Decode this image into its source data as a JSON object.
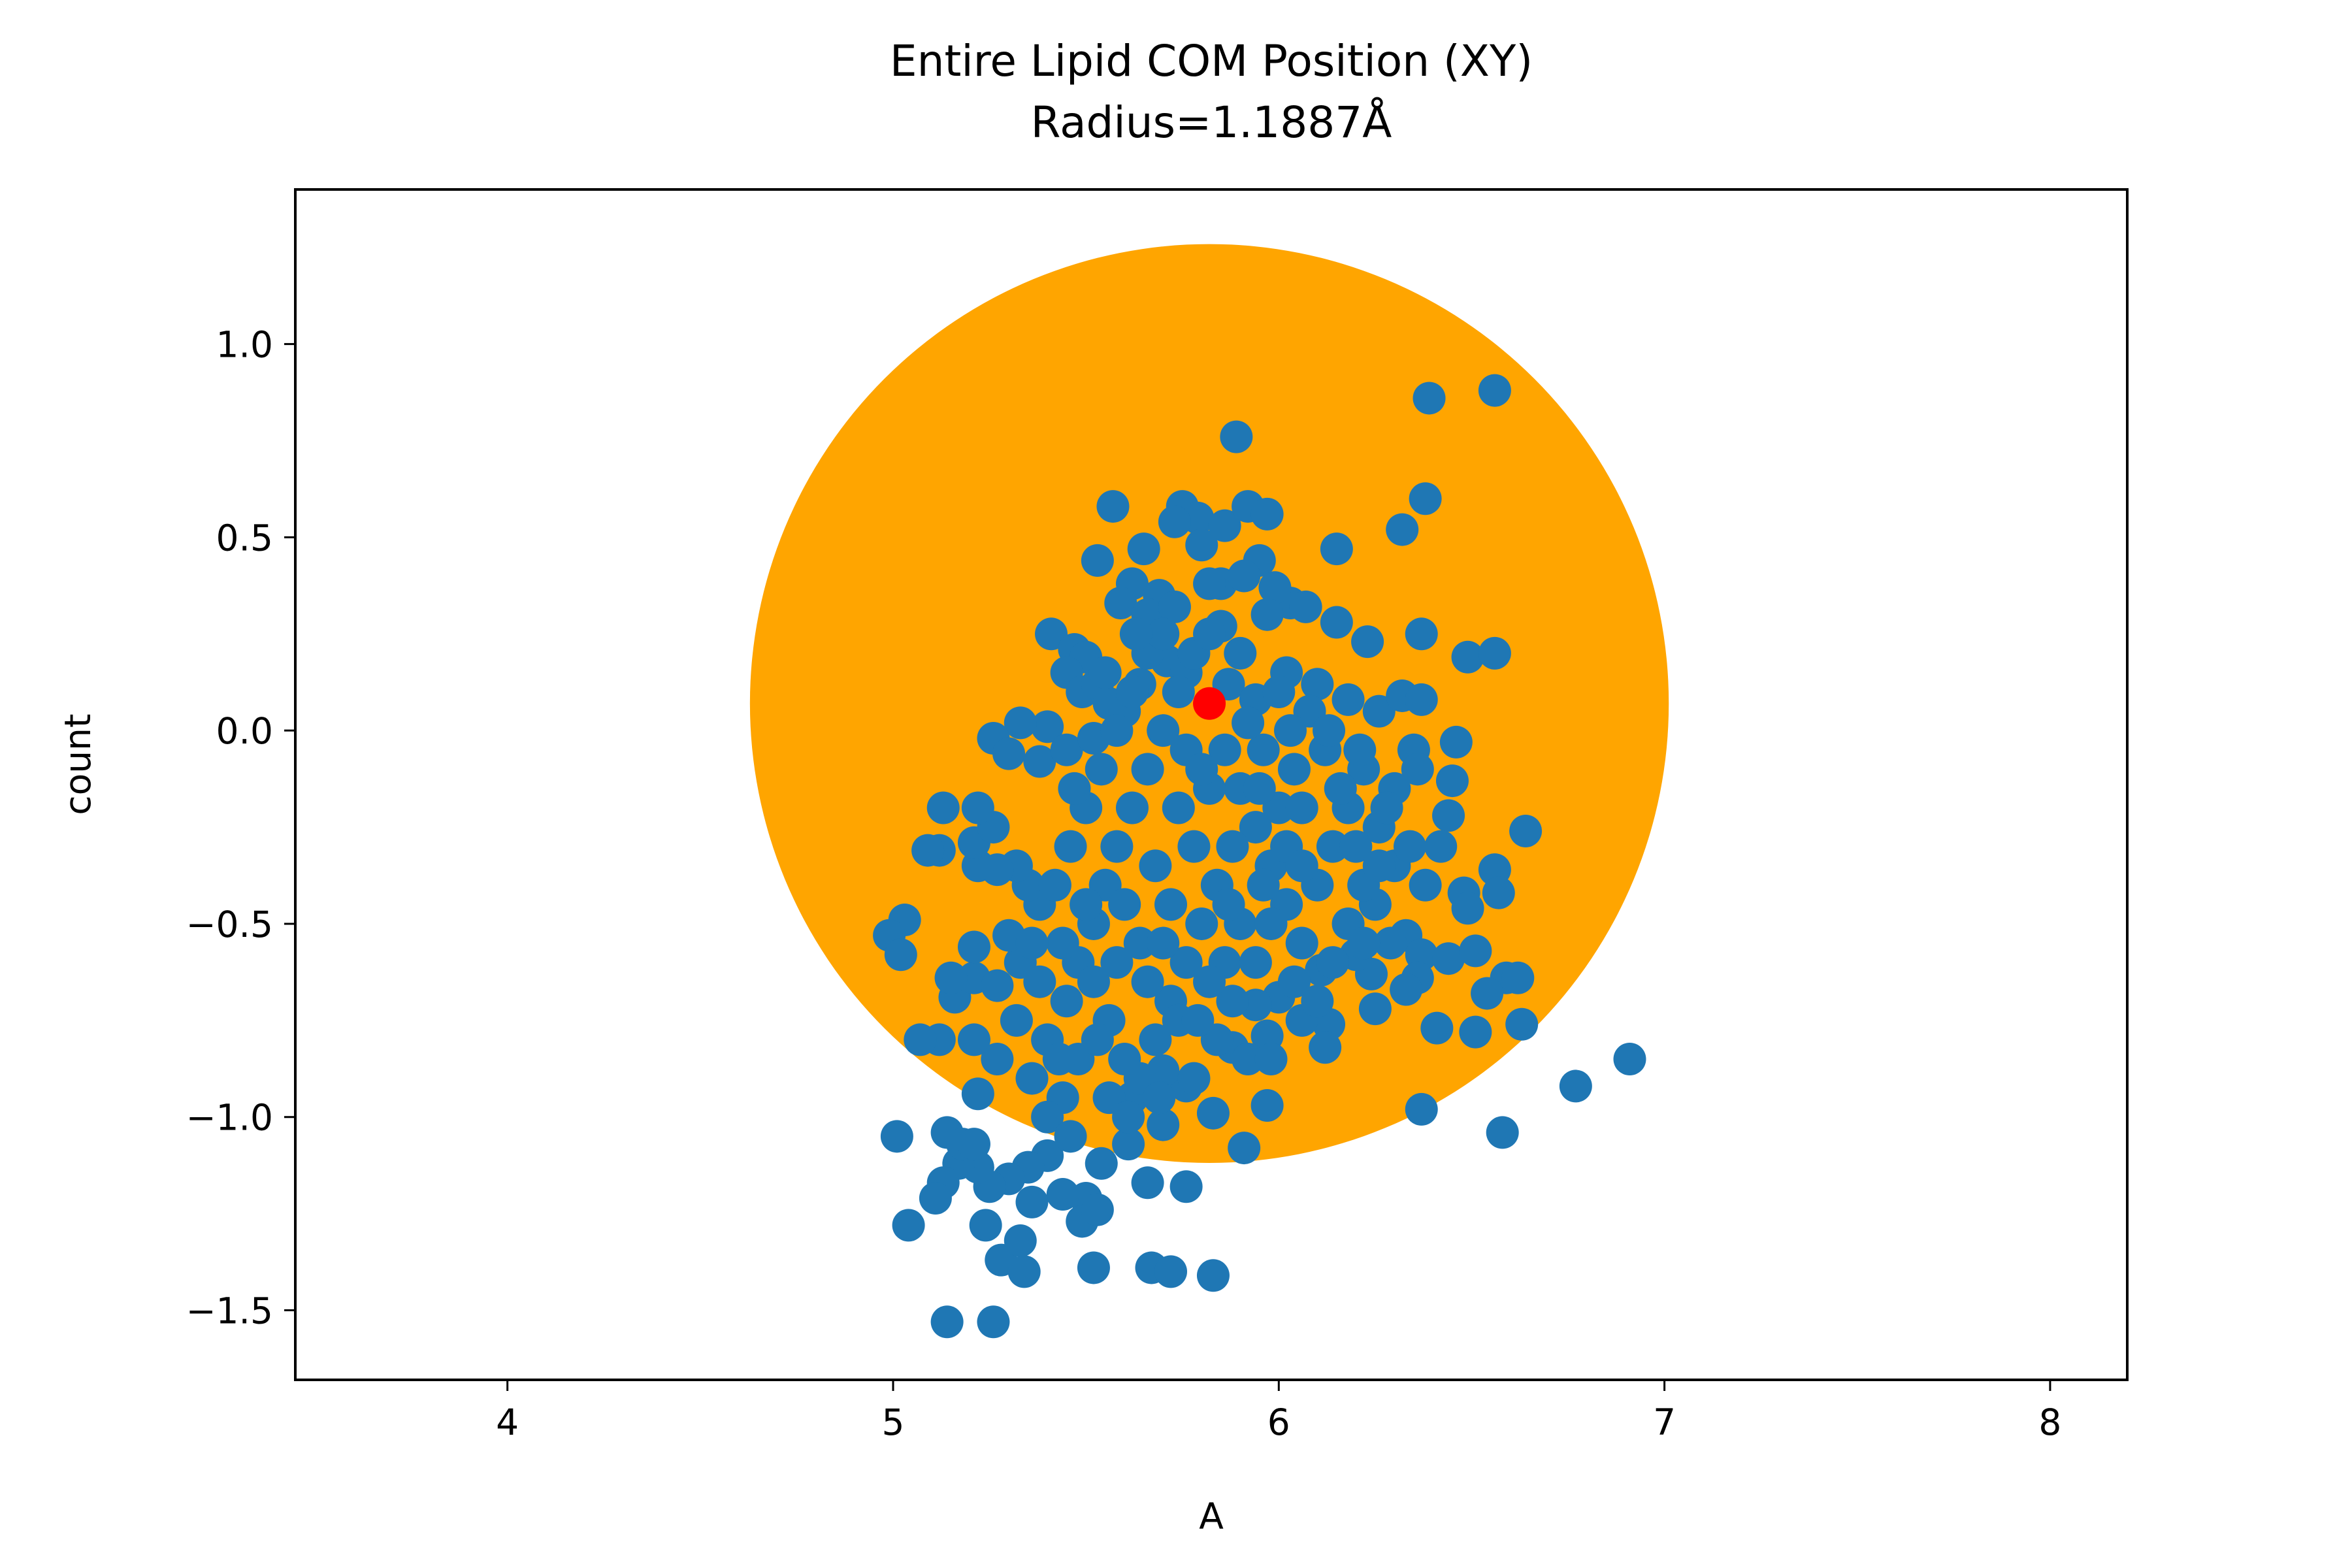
{
  "chart_data": {
    "type": "scatter",
    "title": "Entire Lipid COM Position (XY)",
    "subtitle": "Radius=1.1887Å",
    "xlabel": "A",
    "ylabel": "count",
    "xlim": [
      3.45,
      8.2
    ],
    "ylim": [
      -1.68,
      1.4
    ],
    "xticks": [
      4,
      5,
      6,
      7,
      8
    ],
    "yticks": [
      1.0,
      0.5,
      0.0,
      -0.5,
      -1.0,
      -1.5
    ],
    "xtick_labels": [
      "4",
      "5",
      "6",
      "7",
      "8"
    ],
    "ytick_labels": [
      "1.0",
      "0.5",
      "0.0",
      "−0.5",
      "−1.0",
      "−1.5"
    ],
    "grid": false,
    "legend": "none",
    "colors": {
      "points": "#1f77b4",
      "circle": "#ffa500",
      "center": "#ff0000"
    },
    "circle": {
      "center": [
        5.82,
        0.07
      ],
      "radius": 1.1887
    },
    "center_point": {
      "x": 5.82,
      "y": 0.07
    },
    "points": [
      [
        5.57,
        0.58
      ],
      [
        5.75,
        0.58
      ],
      [
        5.79,
        0.55
      ],
      [
        5.86,
        0.53
      ],
      [
        5.92,
        0.58
      ],
      [
        5.97,
        0.56
      ],
      [
        5.89,
        0.76
      ],
      [
        5.53,
        0.44
      ],
      [
        5.65,
        0.47
      ],
      [
        5.73,
        0.54
      ],
      [
        5.8,
        0.48
      ],
      [
        5.85,
        0.38
      ],
      [
        5.95,
        0.44
      ],
      [
        6.03,
        0.33
      ],
      [
        6.15,
        0.47
      ],
      [
        5.62,
        0.38
      ],
      [
        5.69,
        0.35
      ],
      [
        5.82,
        0.38
      ],
      [
        5.91,
        0.4
      ],
      [
        5.99,
        0.37
      ],
      [
        6.07,
        0.32
      ],
      [
        6.15,
        0.28
      ],
      [
        6.23,
        0.23
      ],
      [
        5.59,
        0.33
      ],
      [
        5.66,
        0.3
      ],
      [
        5.73,
        0.32
      ],
      [
        5.85,
        0.27
      ],
      [
        5.97,
        0.3
      ],
      [
        6.39,
        0.86
      ],
      [
        6.56,
        0.88
      ],
      [
        6.38,
        0.6
      ],
      [
        6.32,
        0.52
      ],
      [
        6.37,
        0.25
      ],
      [
        6.49,
        0.19
      ],
      [
        6.56,
        0.2
      ],
      [
        5.41,
        0.25
      ],
      [
        5.47,
        0.21
      ],
      [
        5.5,
        0.19
      ],
      [
        5.45,
        0.15
      ],
      [
        5.49,
        0.1
      ],
      [
        5.53,
        0.12
      ],
      [
        5.56,
        0.07
      ],
      [
        5.4,
        0.01
      ],
      [
        5.33,
        0.02
      ],
      [
        5.26,
        -0.02
      ],
      [
        5.3,
        -0.06
      ],
      [
        5.38,
        -0.08
      ],
      [
        5.45,
        -0.05
      ],
      [
        5.52,
        -0.02
      ],
      [
        5.6,
        0.05
      ],
      [
        5.64,
        0.12
      ],
      [
        5.71,
        0.18
      ],
      [
        5.76,
        0.15
      ],
      [
        5.87,
        0.12
      ],
      [
        5.94,
        0.08
      ],
      [
        6.02,
        0.15
      ],
      [
        6.1,
        0.12
      ],
      [
        6.18,
        0.08
      ],
      [
        6.26,
        0.05
      ],
      [
        6.32,
        0.09
      ],
      [
        6.37,
        0.08
      ],
      [
        6.35,
        -0.05
      ],
      [
        6.36,
        -0.1
      ],
      [
        6.46,
        -0.03
      ],
      [
        6.45,
        -0.13
      ],
      [
        6.44,
        -0.22
      ],
      [
        6.42,
        -0.3
      ],
      [
        6.64,
        -0.26
      ],
      [
        6.56,
        -0.36
      ],
      [
        6.57,
        -0.42
      ],
      [
        6.48,
        -0.42
      ],
      [
        6.49,
        -0.46
      ],
      [
        6.38,
        -0.4
      ],
      [
        6.3,
        -0.35
      ],
      [
        6.25,
        -0.45
      ],
      [
        6.33,
        -0.53
      ],
      [
        6.37,
        -0.58
      ],
      [
        6.44,
        -0.59
      ],
      [
        6.51,
        -0.57
      ],
      [
        6.59,
        -0.64
      ],
      [
        6.62,
        -0.64
      ],
      [
        6.54,
        -0.68
      ],
      [
        6.63,
        -0.76
      ],
      [
        6.51,
        -0.78
      ],
      [
        6.41,
        -0.77
      ],
      [
        6.36,
        -0.64
      ],
      [
        6.29,
        -0.55
      ],
      [
        6.33,
        -0.67
      ],
      [
        6.25,
        -0.72
      ],
      [
        6.24,
        -0.63
      ],
      [
        6.2,
        -0.58
      ],
      [
        6.11,
        -0.62
      ],
      [
        6.13,
        -0.76
      ],
      [
        6.12,
        -0.82
      ],
      [
        6.06,
        -0.75
      ],
      [
        6.0,
        -0.69
      ],
      [
        5.94,
        -0.71
      ],
      [
        5.97,
        -0.79
      ],
      [
        5.88,
        -0.82
      ],
      [
        5.97,
        -0.97
      ],
      [
        5.91,
        -1.08
      ],
      [
        5.83,
        -0.99
      ],
      [
        5.76,
        -0.92
      ],
      [
        5.7,
        -0.88
      ],
      [
        5.62,
        -0.95
      ],
      [
        5.7,
        -1.02
      ],
      [
        5.76,
        -1.18
      ],
      [
        5.66,
        -1.17
      ],
      [
        5.61,
        -1.07
      ],
      [
        5.54,
        -1.12
      ],
      [
        5.5,
        -1.21
      ],
      [
        5.49,
        -1.27
      ],
      [
        5.53,
        -1.24
      ],
      [
        5.44,
        -1.2
      ],
      [
        5.4,
        -1.1
      ],
      [
        5.35,
        -1.13
      ],
      [
        5.3,
        -1.16
      ],
      [
        5.25,
        -1.18
      ],
      [
        5.22,
        -1.13
      ],
      [
        5.17,
        -1.12
      ],
      [
        5.14,
        -1.04
      ],
      [
        5.18,
        -1.07
      ],
      [
        5.21,
        -1.07
      ],
      [
        5.13,
        -1.17
      ],
      [
        5.11,
        -1.21
      ],
      [
        5.04,
        -1.28
      ],
      [
        5.01,
        -1.05
      ],
      [
        5.22,
        -0.94
      ],
      [
        5.27,
        -0.85
      ],
      [
        5.21,
        -0.8
      ],
      [
        5.12,
        -0.8
      ],
      [
        5.07,
        -0.8
      ],
      [
        5.16,
        -0.69
      ],
      [
        5.21,
        -0.64
      ],
      [
        5.15,
        -0.64
      ],
      [
        5.21,
        -0.56
      ],
      [
        5.27,
        -0.66
      ],
      [
        5.33,
        -0.6
      ],
      [
        5.3,
        -0.53
      ],
      [
        5.38,
        -0.45
      ],
      [
        5.35,
        -0.4
      ],
      [
        5.32,
        -0.35
      ],
      [
        5.27,
        -0.36
      ],
      [
        5.22,
        -0.35
      ],
      [
        5.21,
        -0.29
      ],
      [
        5.26,
        -0.25
      ],
      [
        5.22,
        -0.2
      ],
      [
        5.13,
        -0.2
      ],
      [
        5.12,
        -0.31
      ],
      [
        5.09,
        -0.31
      ],
      [
        5.03,
        -0.49
      ],
      [
        4.99,
        -0.53
      ],
      [
        5.02,
        -0.58
      ],
      [
        5.24,
        -1.28
      ],
      [
        5.28,
        -1.37
      ],
      [
        5.34,
        -1.4
      ],
      [
        5.33,
        -1.32
      ],
      [
        5.36,
        -1.22
      ],
      [
        5.14,
        -1.53
      ],
      [
        5.26,
        -1.53
      ],
      [
        5.52,
        -1.39
      ],
      [
        5.67,
        -1.39
      ],
      [
        5.72,
        -1.4
      ],
      [
        5.83,
        -1.41
      ],
      [
        6.37,
        -0.98
      ],
      [
        6.58,
        -1.04
      ],
      [
        6.77,
        -0.92
      ],
      [
        6.91,
        -0.85
      ],
      [
        5.4,
        -0.8
      ],
      [
        5.45,
        -0.7
      ],
      [
        5.48,
        -0.6
      ],
      [
        5.52,
        -0.5
      ],
      [
        5.55,
        -0.4
      ],
      [
        5.58,
        -0.3
      ],
      [
        5.62,
        -0.2
      ],
      [
        5.66,
        -0.1
      ],
      [
        5.7,
        0.0
      ],
      [
        5.74,
        0.1
      ],
      [
        5.78,
        0.2
      ],
      [
        5.82,
        0.25
      ],
      [
        5.86,
        -0.05
      ],
      [
        5.9,
        -0.15
      ],
      [
        5.94,
        -0.25
      ],
      [
        5.98,
        -0.35
      ],
      [
        6.02,
        -0.45
      ],
      [
        6.06,
        -0.55
      ],
      [
        6.1,
        -0.4
      ],
      [
        6.14,
        -0.3
      ],
      [
        6.18,
        -0.2
      ],
      [
        6.22,
        -0.1
      ],
      [
        6.26,
        -0.25
      ],
      [
        6.3,
        -0.15
      ],
      [
        6.12,
        -0.05
      ],
      [
        6.08,
        0.05
      ],
      [
        6.04,
        -0.1
      ],
      [
        6.0,
        -0.2
      ],
      [
        5.96,
        -0.05
      ],
      [
        5.92,
        0.02
      ],
      [
        5.88,
        -0.3
      ],
      [
        5.84,
        -0.4
      ],
      [
        5.8,
        -0.5
      ],
      [
        5.76,
        -0.6
      ],
      [
        5.72,
        -0.7
      ],
      [
        5.68,
        -0.8
      ],
      [
        5.64,
        -0.9
      ],
      [
        5.6,
        -0.85
      ],
      [
        5.56,
        -0.75
      ],
      [
        5.52,
        -0.65
      ],
      [
        5.48,
        -0.85
      ],
      [
        5.44,
        -0.95
      ],
      [
        5.4,
        -1.0
      ],
      [
        5.36,
        -0.9
      ],
      [
        5.32,
        -0.75
      ],
      [
        5.46,
        -0.3
      ],
      [
        5.5,
        -0.2
      ],
      [
        5.54,
        -0.1
      ],
      [
        5.58,
        0.0
      ],
      [
        5.62,
        0.1
      ],
      [
        5.66,
        0.2
      ],
      [
        5.7,
        0.25
      ],
      [
        5.74,
        -0.2
      ],
      [
        5.78,
        -0.3
      ],
      [
        5.82,
        -0.15
      ],
      [
        5.86,
        -0.6
      ],
      [
        5.9,
        -0.5
      ],
      [
        5.94,
        -0.6
      ],
      [
        5.98,
        -0.5
      ],
      [
        6.02,
        -0.3
      ],
      [
        6.06,
        -0.2
      ],
      [
        6.1,
        -0.7
      ],
      [
        6.14,
        -0.6
      ],
      [
        6.18,
        -0.5
      ],
      [
        6.22,
        -0.4
      ],
      [
        5.6,
        -0.45
      ],
      [
        5.64,
        -0.55
      ],
      [
        5.68,
        -0.35
      ],
      [
        5.72,
        -0.45
      ],
      [
        5.76,
        -0.05
      ],
      [
        5.8,
        -0.1
      ],
      [
        5.84,
        -0.8
      ],
      [
        5.88,
        -0.7
      ],
      [
        5.78,
        -0.9
      ],
      [
        5.7,
        -0.55
      ],
      [
        5.58,
        -0.6
      ],
      [
        5.5,
        -0.45
      ],
      [
        5.44,
        -0.55
      ],
      [
        5.42,
        -0.4
      ],
      [
        5.47,
        -0.15
      ],
      [
        5.55,
        0.15
      ],
      [
        5.63,
        0.25
      ],
      [
        5.9,
        0.2
      ],
      [
        6.0,
        0.1
      ],
      [
        6.06,
        -0.35
      ],
      [
        6.16,
        -0.15
      ],
      [
        6.2,
        -0.3
      ],
      [
        6.26,
        -0.35
      ],
      [
        5.96,
        -0.4
      ],
      [
        5.92,
        -0.85
      ],
      [
        5.82,
        -0.65
      ],
      [
        5.74,
        -0.75
      ],
      [
        5.66,
        -0.65
      ],
      [
        5.56,
        -0.95
      ],
      [
        5.46,
        -1.05
      ],
      [
        5.38,
        -0.65
      ],
      [
        5.36,
        -0.55
      ],
      [
        5.43,
        -0.85
      ],
      [
        5.53,
        -0.8
      ],
      [
        5.61,
        -1.0
      ],
      [
        5.69,
        -0.95
      ],
      [
        5.79,
        -0.75
      ],
      [
        5.87,
        -0.45
      ],
      [
        5.95,
        -0.15
      ],
      [
        6.03,
        0.0
      ],
      [
        6.13,
        0.0
      ],
      [
        6.21,
        -0.05
      ],
      [
        6.28,
        -0.2
      ],
      [
        6.34,
        -0.3
      ],
      [
        6.22,
        -0.55
      ],
      [
        6.04,
        -0.65
      ],
      [
        5.98,
        -0.85
      ]
    ]
  }
}
